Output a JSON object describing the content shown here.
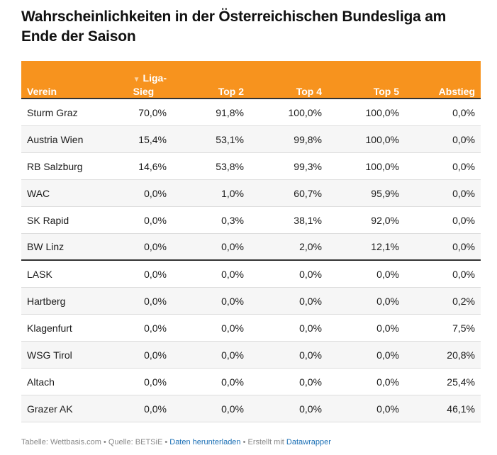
{
  "title": "Wahrscheinlichkeiten in der Österreichischen Bundesliga am Ende der Saison",
  "header": {
    "verein": "Verein",
    "liga_line1": "Liga-",
    "liga_line2": "Sieg",
    "top2": "Top 2",
    "top4": "Top 4",
    "top5": "Top 5",
    "abstieg": "Abstieg"
  },
  "rows": [
    {
      "club": "Sturm Graz",
      "liga": "70,0%",
      "top2": "91,8%",
      "top4": "100,0%",
      "top5": "100,0%",
      "abstieg": "0,0%"
    },
    {
      "club": "Austria Wien",
      "liga": "15,4%",
      "top2": "53,1%",
      "top4": "99,8%",
      "top5": "100,0%",
      "abstieg": "0,0%"
    },
    {
      "club": "RB Salzburg",
      "liga": "14,6%",
      "top2": "53,8%",
      "top4": "99,3%",
      "top5": "100,0%",
      "abstieg": "0,0%"
    },
    {
      "club": "WAC",
      "liga": "0,0%",
      "top2": "1,0%",
      "top4": "60,7%",
      "top5": "95,9%",
      "abstieg": "0,0%"
    },
    {
      "club": "SK Rapid",
      "liga": "0,0%",
      "top2": "0,3%",
      "top4": "38,1%",
      "top5": "92,0%",
      "abstieg": "0,0%"
    },
    {
      "club": "BW Linz",
      "liga": "0,0%",
      "top2": "0,0%",
      "top4": "2,0%",
      "top5": "12,1%",
      "abstieg": "0,0%"
    },
    {
      "club": "LASK",
      "liga": "0,0%",
      "top2": "0,0%",
      "top4": "0,0%",
      "top5": "0,0%",
      "abstieg": "0,0%"
    },
    {
      "club": "Hartberg",
      "liga": "0,0%",
      "top2": "0,0%",
      "top4": "0,0%",
      "top5": "0,0%",
      "abstieg": "0,2%"
    },
    {
      "club": "Klagenfurt",
      "liga": "0,0%",
      "top2": "0,0%",
      "top4": "0,0%",
      "top5": "0,0%",
      "abstieg": "7,5%"
    },
    {
      "club": "WSG Tirol",
      "liga": "0,0%",
      "top2": "0,0%",
      "top4": "0,0%",
      "top5": "0,0%",
      "abstieg": "20,8%"
    },
    {
      "club": "Altach",
      "liga": "0,0%",
      "top2": "0,0%",
      "top4": "0,0%",
      "top5": "0,0%",
      "abstieg": "25,4%"
    },
    {
      "club": "Grazer AK",
      "liga": "0,0%",
      "top2": "0,0%",
      "top4": "0,0%",
      "top5": "0,0%",
      "abstieg": "46,1%"
    }
  ],
  "footer": {
    "prefix": "Tabelle: Wettbasis.com • Quelle: BETSiE • ",
    "download": "Daten herunterladen",
    "middle": " • Erstellt mit ",
    "datawrapper": "Datawrapper"
  },
  "colors": {
    "header_bg": "#f7931e",
    "link": "#1a6fb5"
  },
  "sort_icon": "triangle-down",
  "chart_data": {
    "type": "table",
    "title": "Wahrscheinlichkeiten in der Österreichischen Bundesliga am Ende der Saison",
    "columns": [
      "Verein",
      "Liga-Sieg",
      "Top 2",
      "Top 4",
      "Top 5",
      "Abstieg"
    ],
    "categories": [
      "Sturm Graz",
      "Austria Wien",
      "RB Salzburg",
      "WAC",
      "SK Rapid",
      "BW Linz",
      "LASK",
      "Hartberg",
      "Klagenfurt",
      "WSG Tirol",
      "Altach",
      "Grazer AK"
    ],
    "series": [
      {
        "name": "Liga-Sieg",
        "values": [
          70.0,
          15.4,
          14.6,
          0.0,
          0.0,
          0.0,
          0.0,
          0.0,
          0.0,
          0.0,
          0.0,
          0.0
        ]
      },
      {
        "name": "Top 2",
        "values": [
          91.8,
          53.1,
          53.8,
          1.0,
          0.3,
          0.0,
          0.0,
          0.0,
          0.0,
          0.0,
          0.0,
          0.0
        ]
      },
      {
        "name": "Top 4",
        "values": [
          100.0,
          99.8,
          99.3,
          60.7,
          38.1,
          2.0,
          0.0,
          0.0,
          0.0,
          0.0,
          0.0,
          0.0
        ]
      },
      {
        "name": "Top 5",
        "values": [
          100.0,
          100.0,
          100.0,
          95.9,
          92.0,
          12.1,
          0.0,
          0.0,
          0.0,
          0.0,
          0.0,
          0.0
        ]
      },
      {
        "name": "Abstieg",
        "values": [
          0.0,
          0.0,
          0.0,
          0.0,
          0.0,
          0.0,
          0.0,
          0.2,
          7.5,
          20.8,
          25.4,
          46.1
        ]
      }
    ],
    "sorted_by": "Liga-Sieg",
    "sort_order": "descending"
  }
}
